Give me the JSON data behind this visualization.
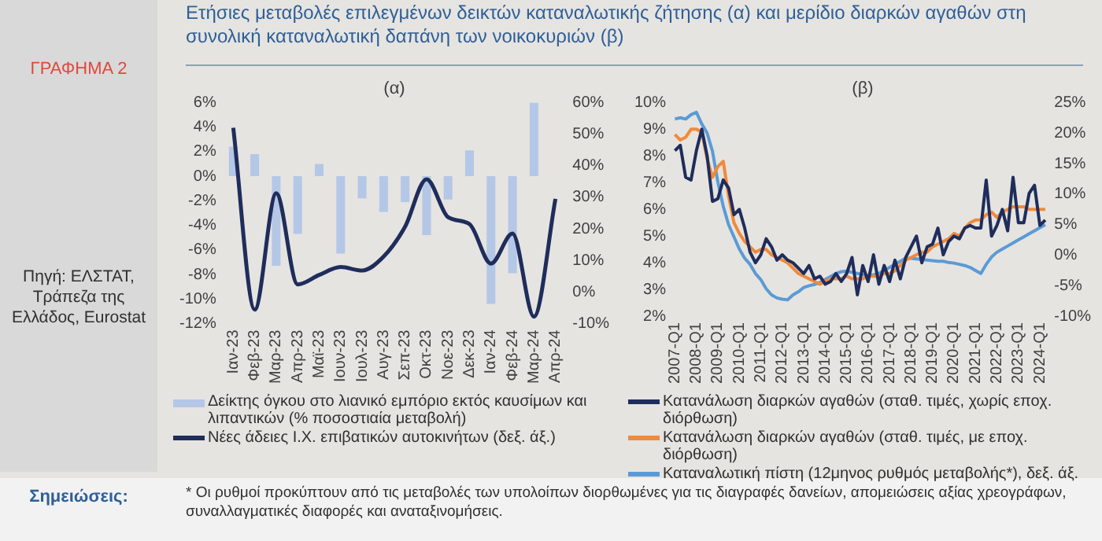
{
  "chart_data": [
    {
      "type": "other",
      "title": "Ετήσιες μεταβολές επιλεγμένων δεικτών καταναλωτικής ζήτησης (α) και μερίδιο διαρκών αγαθών στη συνολική καταναλωτική δαπάνη των νοικοκυριών (β)",
      "annotations": [
        "ΓΡΑΦΗΜΑ 2",
        "Πηγή: ΕΛΣΤΑΤ, Τράπεζα της Ελλάδος, Eurostat",
        "Σημειώσεις:",
        "* Οι ρυθμοί προκύπτουν από τις μεταβολές των υπολοίπων διορθωμένες για τις διαγραφές δανείων, απομειώσεις αξίας χρεογράφων, συναλλαγματικές διαφορές και αναταξινομήσεις."
      ]
    },
    {
      "type": "bar",
      "title": "(α)",
      "categories": [
        "Ιαν-23",
        "Φεβ-23",
        "Μαρ-23",
        "Απρ-23",
        "Μαϊ-23",
        "Ιουν-23",
        "Ιουλ-23",
        "Αυγ-23",
        "Σεπ-23",
        "Οκτ-23",
        "Νοε-23",
        "Δεκ-23",
        "Ιαν-24",
        "Φεβ-24",
        "Μαρ-24",
        "Απρ-24"
      ],
      "series": [
        {
          "name": "Δείκτης όγκου στο λιανικό εμπόριο εκτός καυσίμων και λιπαντικών (% ποσοστιαία μεταβολή)",
          "type": "bar",
          "color": "#b4c7e7",
          "values": [
            2.4,
            1.8,
            -7.3,
            -4.7,
            1.0,
            -6.3,
            -1.8,
            -2.9,
            -2.1,
            -4.8,
            -1.9,
            2.1,
            -10.4,
            -7.9,
            6.0,
            null
          ]
        },
        {
          "name": "Νέες άδειες Ι.Χ. επιβατικών αυτοκινήτων (δεξ. άξ.)",
          "type": "line",
          "axis": "y2",
          "color": "#1f2d5c",
          "values": [
            52,
            -5.6,
            31.3,
            2.4,
            5.4,
            7.9,
            6.8,
            11.2,
            20.7,
            35.7,
            23.7,
            21.5,
            9,
            18.5,
            -7.8,
            29.5
          ]
        }
      ],
      "ylim": [
        -12,
        6
      ],
      "yticks": [
        {
          "value": -12,
          "label": "-12%"
        },
        {
          "value": -10,
          "label": "-10%"
        },
        {
          "value": -8,
          "label": "-8%"
        },
        {
          "value": -6,
          "label": "-6%"
        },
        {
          "value": -4,
          "label": "-4%"
        },
        {
          "value": -2,
          "label": "-2%"
        },
        {
          "value": 0,
          "label": "0%"
        },
        {
          "value": 2,
          "label": "2%"
        },
        {
          "value": 4,
          "label": "4%"
        },
        {
          "value": 6,
          "label": "6%"
        }
      ],
      "y2lim": [
        -10,
        60
      ],
      "y2ticks": [
        {
          "value": -10,
          "label": "-10%"
        },
        {
          "value": 0,
          "label": "0%"
        },
        {
          "value": 10,
          "label": "10%"
        },
        {
          "value": 20,
          "label": "20%"
        },
        {
          "value": 30,
          "label": "30%"
        },
        {
          "value": 40,
          "label": "40%"
        },
        {
          "value": 50,
          "label": "50%"
        },
        {
          "value": 60,
          "label": "60%"
        }
      ],
      "legend": "bottom",
      "marker": "none"
    },
    {
      "type": "line",
      "title": "(β)",
      "categories": [
        "2007-Q1",
        null,
        null,
        null,
        "2008-Q1",
        null,
        null,
        null,
        "2009-Q1",
        null,
        null,
        null,
        "2010-Q1",
        null,
        null,
        null,
        "2011-Q1",
        null,
        null,
        null,
        "2012-Q1",
        null,
        null,
        null,
        "2013-Q1",
        null,
        null,
        null,
        "2014-Q1",
        null,
        null,
        null,
        "2015-Q1",
        null,
        null,
        null,
        "2016-Q1",
        null,
        null,
        null,
        "2017-Q1",
        null,
        null,
        null,
        "2018-Q1",
        null,
        null,
        null,
        "2019-Q1",
        null,
        null,
        null,
        "2020-Q1",
        null,
        null,
        null,
        "2021-Q1",
        null,
        null,
        null,
        "2022-Q1",
        null,
        null,
        null,
        "2023-Q1",
        null,
        null,
        null,
        "2024-Q1",
        null
      ],
      "series": [
        {
          "name": "Κατανάλωση διαρκών αγαθών (σταθ. τιμές, χωρίς εποχ. διόρθωση)",
          "color": "#1f2d5c",
          "values": [
            8.2,
            8.4,
            7.2,
            7.1,
            8.2,
            9.0,
            8.0,
            6.3,
            6.4,
            7.1,
            6.8,
            5.8,
            6.0,
            5.3,
            4.4,
            4.0,
            4.3,
            4.9,
            4.6,
            4.1,
            4.3,
            4.1,
            4.0,
            3.8,
            3.6,
            3.9,
            3.4,
            3.5,
            3.2,
            3.3,
            3.6,
            3.3,
            3.6,
            4.2,
            2.8,
            3.9,
            3.3,
            4.3,
            3.2,
            3.9,
            3.3,
            4.1,
            3.4,
            4.2,
            4.6,
            5.0,
            4.0,
            4.6,
            4.7,
            5.3,
            4.3,
            4.8,
            5.0,
            4.9,
            5.3,
            5.4,
            5.3,
            5.3,
            7.1,
            5.0,
            5.4,
            6.0,
            5.2,
            7.2,
            5.5,
            5.5,
            6.6,
            6.9,
            5.4,
            5.6
          ]
        },
        {
          "name": "Κατανάλωση διαρκών αγαθών (σταθ. τιμές, με εποχ. διόρθωση)",
          "color": "#f08a3c",
          "values": [
            8.8,
            8.6,
            8.7,
            9.0,
            9.0,
            8.9,
            7.9,
            7.2,
            7.6,
            7.8,
            6.5,
            5.5,
            5.1,
            4.8,
            4.6,
            4.4,
            4.5,
            4.5,
            4.3,
            4.2,
            4.1,
            4.0,
            3.8,
            3.6,
            3.5,
            3.4,
            3.3,
            3.2,
            3.3,
            3.4,
            3.4,
            3.4,
            3.5,
            3.4,
            3.4,
            3.4,
            3.5,
            3.5,
            3.5,
            3.6,
            3.6,
            3.7,
            3.9,
            4.1,
            4.2,
            4.3,
            4.4,
            4.4,
            4.6,
            4.7,
            4.8,
            4.9,
            5.1,
            5.0,
            5.3,
            5.5,
            5.6,
            5.6,
            5.8,
            5.9,
            5.7,
            5.9,
            6.0,
            6.1,
            6.1,
            6.1,
            6.0,
            6.0,
            6.0,
            6.0
          ]
        },
        {
          "name": "Καταναλωτική πίστη (12μηνος ρυθμός μεταβολής*), δεξ. άξ.",
          "axis": "y2",
          "color": "#5b9bd5",
          "values": [
            22.3,
            22.5,
            22.3,
            23.0,
            23.4,
            21.5,
            20,
            17,
            12,
            8,
            5,
            3,
            1,
            -0.5,
            -1.5,
            -3,
            -4,
            -5.5,
            -6.5,
            -7,
            -7.2,
            -7.3,
            -6.5,
            -6,
            -5.3,
            -5,
            -4.8,
            -4.5,
            -4,
            -3.5,
            -3,
            -2.7,
            -2.6,
            -2.8,
            -3,
            -3.2,
            -3.3,
            -3.2,
            -3,
            -2.5,
            -2,
            -1.5,
            -1,
            -0.5,
            -0.5,
            -0.6,
            -0.7,
            -0.8,
            -0.9,
            -1,
            -1,
            -1.2,
            -1.3,
            -1.5,
            -1.7,
            -2,
            -2.5,
            -3,
            -1.5,
            -0.3,
            0.5,
            1,
            1.5,
            2,
            2.5,
            3,
            3.5,
            4,
            4.5,
            5
          ]
        }
      ],
      "ylim": [
        2,
        10
      ],
      "yticks": [
        {
          "value": 2,
          "label": "2%"
        },
        {
          "value": 3,
          "label": "3%"
        },
        {
          "value": 4,
          "label": "4%"
        },
        {
          "value": 5,
          "label": "5%"
        },
        {
          "value": 6,
          "label": "6%"
        },
        {
          "value": 7,
          "label": "7%"
        },
        {
          "value": 8,
          "label": "8%"
        },
        {
          "value": 9,
          "label": "9%"
        },
        {
          "value": 10,
          "label": "10%"
        }
      ],
      "y2lim": [
        -10,
        25
      ],
      "y2ticks": [
        {
          "value": -10,
          "label": "-10%"
        },
        {
          "value": -5,
          "label": "-5%"
        },
        {
          "value": 0,
          "label": "0%"
        },
        {
          "value": 5,
          "label": "5%"
        },
        {
          "value": 10,
          "label": "10%"
        },
        {
          "value": 15,
          "label": "15%"
        },
        {
          "value": 20,
          "label": "20%"
        },
        {
          "value": 25,
          "label": "25%"
        }
      ],
      "legend": "bottom",
      "marker": "none"
    }
  ]
}
